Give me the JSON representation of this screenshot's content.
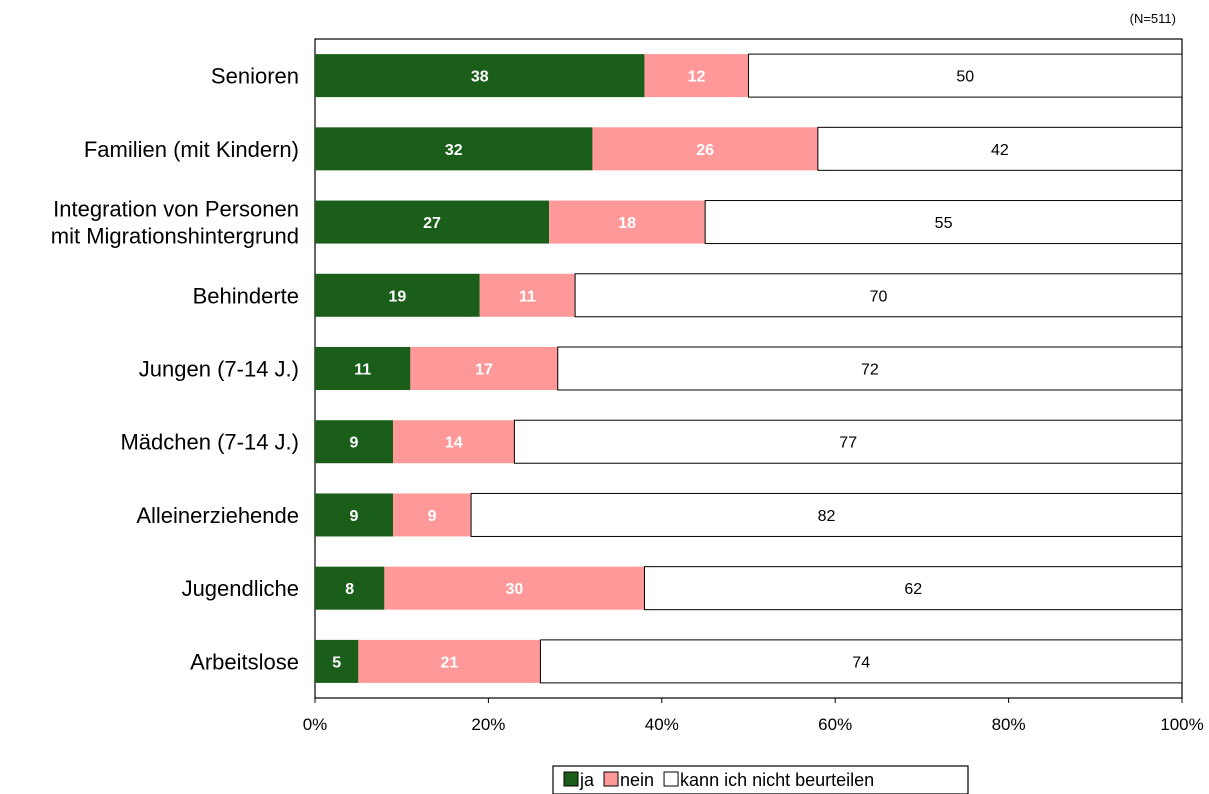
{
  "chart_data": {
    "type": "bar",
    "orientation": "horizontal",
    "stacked": true,
    "note": "(N=511)",
    "categories": [
      "Senioren",
      "Familien (mit Kindern)",
      "Integration von Personen\nmit Migrationshintergrund",
      "Behinderte",
      "Jungen (7-14 J.)",
      "Mädchen (7-14 J.)",
      "Alleinerziehende",
      "Jugendliche",
      "Arbeitslose"
    ],
    "series": [
      {
        "name": "ja",
        "color": "#1a5e1a",
        "values": [
          38,
          32,
          27,
          19,
          11,
          9,
          9,
          8,
          5
        ]
      },
      {
        "name": "nein",
        "color": "#ff9999",
        "values": [
          12,
          26,
          18,
          11,
          17,
          14,
          9,
          30,
          21
        ]
      },
      {
        "name": "kann ich nicht beurteilen",
        "color": "#ffffff",
        "values": [
          50,
          42,
          55,
          70,
          72,
          77,
          82,
          62,
          74
        ]
      }
    ],
    "xlim": [
      0,
      100
    ],
    "x_ticks": [
      "0%",
      "20%",
      "40%",
      "60%",
      "80%",
      "100%"
    ],
    "legend_position": "bottom",
    "grid": false
  }
}
